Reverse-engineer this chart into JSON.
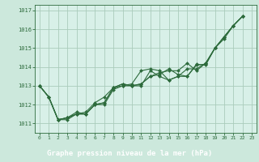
{
  "background_color": "#cce8dc",
  "plot_bg_color": "#d8f0e8",
  "grid_color": "#aaccbb",
  "line_color": "#2d6b3c",
  "marker_color": "#2d6b3c",
  "title": "Graphe pression niveau de la mer (hPa)",
  "xlim": [
    -0.5,
    23.5
  ],
  "ylim": [
    1010.5,
    1017.3
  ],
  "yticks": [
    1011,
    1012,
    1013,
    1014,
    1015,
    1016,
    1017
  ],
  "xticks": [
    0,
    1,
    2,
    3,
    4,
    5,
    6,
    7,
    8,
    9,
    10,
    11,
    12,
    13,
    14,
    15,
    16,
    17,
    18,
    19,
    20,
    21,
    22,
    23
  ],
  "series": [
    [
      0,
      1013.0,
      1,
      1012.4,
      2,
      1011.2,
      3,
      1011.2,
      4,
      1011.5,
      5,
      1011.5,
      6,
      1012.0,
      7,
      1012.0,
      8,
      1012.8,
      9,
      1013.0,
      10,
      1013.1,
      11,
      1013.8,
      12,
      1013.9,
      13,
      1013.8,
      14,
      1013.3,
      15,
      1013.5,
      16,
      1013.9,
      17,
      1013.9,
      18,
      1014.2,
      19,
      1015.0,
      20,
      1015.6,
      21,
      1016.2,
      22,
      1016.7
    ],
    [
      0,
      1013.0,
      1,
      1012.4,
      2,
      1011.2,
      3,
      1011.3,
      4,
      1011.6,
      5,
      1011.5,
      6,
      1012.0,
      7,
      1012.1,
      8,
      1012.9,
      9,
      1013.1,
      10,
      1013.0,
      11,
      1013.1,
      12,
      1013.5,
      13,
      1013.7,
      14,
      1013.8,
      15,
      1013.8,
      16,
      1014.2,
      17,
      1013.8,
      18,
      1014.2,
      19,
      1015.0,
      20,
      1015.6,
      21,
      1016.2,
      22,
      1016.7
    ],
    [
      0,
      1013.0,
      1,
      1012.4,
      2,
      1011.2,
      3,
      1011.3,
      4,
      1011.5,
      5,
      1011.6,
      6,
      1012.1,
      7,
      1012.4,
      8,
      1012.9,
      9,
      1013.0,
      10,
      1013.0,
      11,
      1013.0,
      12,
      1013.8,
      13,
      1013.5,
      14,
      1013.3,
      15,
      1013.5,
      16,
      1013.5,
      17,
      1014.1,
      18,
      1014.15,
      19,
      1015.0,
      20,
      1015.5,
      21,
      1016.2,
      22,
      1016.7
    ],
    [
      0,
      1013.0,
      1,
      1012.4,
      2,
      1011.2,
      3,
      1011.3,
      4,
      1011.5,
      5,
      1011.5,
      6,
      1012.0,
      7,
      1012.1,
      8,
      1012.9,
      9,
      1013.1,
      10,
      1013.0,
      11,
      1013.1,
      12,
      1013.5,
      13,
      1013.6,
      14,
      1013.9,
      15,
      1013.6,
      16,
      1013.5,
      17,
      1014.15,
      18,
      1014.1,
      19,
      1015.0,
      20,
      1015.6,
      21,
      1016.2,
      22,
      1016.7
    ]
  ],
  "label_bg": "#4a8c5c",
  "label_fg": "#ffffff",
  "label_fontsize": 6.5
}
